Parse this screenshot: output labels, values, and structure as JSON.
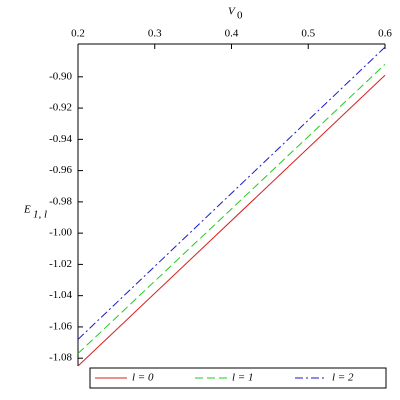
{
  "chart_data": {
    "type": "line",
    "x_label": {
      "main": "V",
      "sub": "0"
    },
    "y_label": {
      "main": "E",
      "sub": "1, l"
    },
    "x": [
      0.2,
      0.6
    ],
    "series": [
      {
        "name": "l = 0",
        "color": "#d62020",
        "dash": "solid",
        "values": [
          -1.085,
          -0.899
        ]
      },
      {
        "name": "l = 1",
        "color": "#22cc22",
        "dash": "dash",
        "values": [
          -1.077,
          -0.892
        ]
      },
      {
        "name": "l = 2",
        "color": "#1a1acc",
        "dash": "dashdot",
        "values": [
          -1.068,
          -0.881
        ]
      }
    ],
    "xlim": [
      0.2,
      0.6
    ],
    "xticks": [
      0.2,
      0.3,
      0.4,
      0.5,
      0.6
    ],
    "ylim": [
      -1.085,
      -0.879
    ],
    "yticks": [
      {
        "value": -0.9,
        "label": "-0.90"
      },
      {
        "value": -0.92,
        "label": "-0.92"
      },
      {
        "value": -0.94,
        "label": "-0.94"
      },
      {
        "value": -0.96,
        "label": "-0.96"
      },
      {
        "value": -0.98,
        "label": "-0.98"
      },
      {
        "value": -1.0,
        "label": "-1.00"
      },
      {
        "value": -1.02,
        "label": "-1.02"
      },
      {
        "value": -1.04,
        "label": "-1.04"
      },
      {
        "value": -1.06,
        "label": "-1.06"
      },
      {
        "value": -1.08,
        "label": "-1.08"
      }
    ],
    "legend": "bottom"
  }
}
